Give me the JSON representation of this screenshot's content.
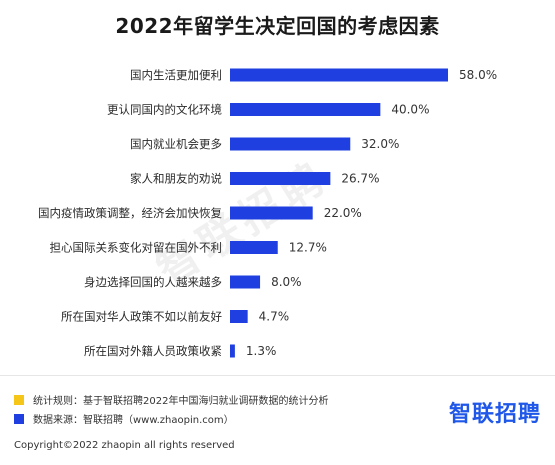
{
  "chart_data": {
    "type": "bar",
    "orientation": "horizontal",
    "title": "2022年留学生决定回国的考虑因素",
    "categories": [
      "国内生活更加便利",
      "更认同国内的文化环境",
      "国内就业机会更多",
      "家人和朋友的劝说",
      "国内疫情政策调整，经济会加快恢复",
      "担心国际关系变化对留在国外不利",
      "身边选择回国的人越来越多",
      "所在国对华人政策不如以前友好",
      "所在国对外籍人员政策收紧"
    ],
    "values": [
      58.0,
      40.0,
      32.0,
      26.7,
      22.0,
      12.7,
      8.0,
      4.7,
      1.3
    ],
    "value_labels": [
      "58.0%",
      "40.0%",
      "32.0%",
      "26.7%",
      "22.0%",
      "12.7%",
      "8.0%",
      "4.7%",
      "1.3%"
    ],
    "unit": "%",
    "bar_color": "#1f3fe0",
    "xlim": [
      0,
      58
    ],
    "grid": false,
    "legend": "none"
  },
  "watermark": "智联招聘",
  "notes": [
    {
      "text": "统计规则：基于智联招聘2022年中国海归就业调研数据的统计分析",
      "color": "#f5c518"
    },
    {
      "text": "数据来源：智联招聘（www.zhaopin.com）",
      "color": "#1f3fe0"
    }
  ],
  "logo": "智联招聘",
  "copyright": "Copyright©2022 zhaopin all rights reserved"
}
